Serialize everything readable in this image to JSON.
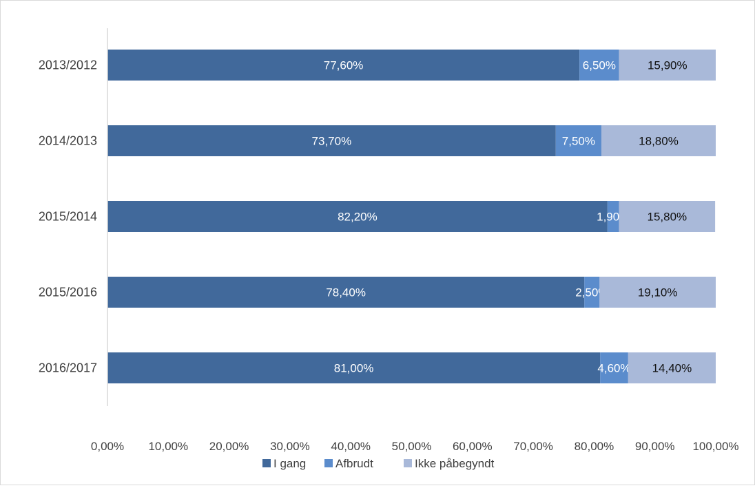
{
  "chart_data": {
    "type": "bar",
    "orientation": "horizontal",
    "stacked": true,
    "categories": [
      "2013/2012",
      "2014/2013",
      "2015/2014",
      "2015/2016",
      "2016/2017"
    ],
    "series": [
      {
        "name": "I gang",
        "color": "#41699b",
        "label_color": "#ffffff",
        "values": [
          77.6,
          73.7,
          82.2,
          78.4,
          81.0
        ],
        "labels": [
          "77,60%",
          "73,70%",
          "82,20%",
          "78,40%",
          "81,00%"
        ]
      },
      {
        "name": "Afbrudt",
        "color": "#5b8ccc",
        "label_color": "#ffffff",
        "values": [
          6.5,
          7.5,
          1.9,
          2.5,
          4.6
        ],
        "labels": [
          "6,50%",
          "7,50%",
          "1,90%",
          "2,50%",
          "4,60%"
        ]
      },
      {
        "name": "Ikke påbegyndt",
        "color": "#a9b9d9",
        "label_color": "#111111",
        "values": [
          15.9,
          18.8,
          15.8,
          19.1,
          14.4
        ],
        "labels": [
          "15,90%",
          "18,80%",
          "15,80%",
          "19,10%",
          "14,40%"
        ]
      }
    ],
    "xlim": [
      0,
      100
    ],
    "xticks": [
      "0,00%",
      "10,00%",
      "20,00%",
      "30,00%",
      "40,00%",
      "50,00%",
      "60,00%",
      "70,00%",
      "80,00%",
      "90,00%",
      "100,00%"
    ],
    "grid": false,
    "legend_position": "bottom"
  }
}
